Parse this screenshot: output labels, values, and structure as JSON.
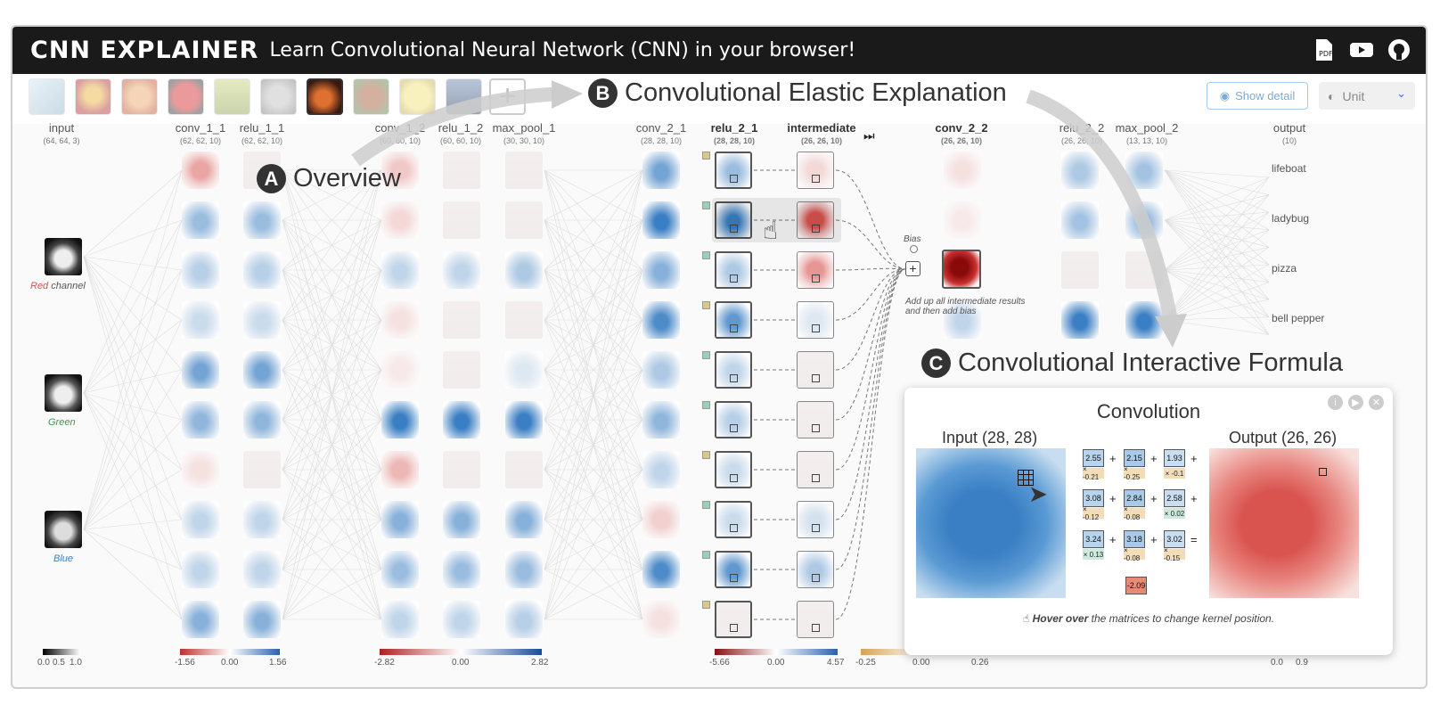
{
  "header": {
    "brand": "CNN EXPLAINER",
    "tagline": "Learn Convolutional Neural Network (CNN) in your browser!",
    "icons": [
      "pdf-icon",
      "youtube-icon",
      "github-icon"
    ]
  },
  "toolbar": {
    "show_detail_label": "Show detail",
    "unit_label": "Unit",
    "add_label": "+"
  },
  "columns": [
    {
      "name": "input",
      "dims": "(64, 64, 3)"
    },
    {
      "name": "conv_1_1",
      "dims": "(62, 62, 10)"
    },
    {
      "name": "relu_1_1",
      "dims": "(62, 62, 10)"
    },
    {
      "name": "conv_1_2",
      "dims": "(60, 60, 10)"
    },
    {
      "name": "relu_1_2",
      "dims": "(60, 60, 10)"
    },
    {
      "name": "max_pool_1",
      "dims": "(30, 30, 10)"
    },
    {
      "name": "conv_2_1",
      "dims": "(28, 28, 10)"
    },
    {
      "name": "relu_2_1",
      "dims": "(28, 28, 10)"
    },
    {
      "name": "intermediate",
      "dims": "(26, 26, 10)"
    },
    {
      "name": "conv_2_2",
      "dims": "(26, 26, 10)"
    },
    {
      "name": "relu_2_2",
      "dims": "(26, 26, 10)"
    },
    {
      "name": "max_pool_2",
      "dims": "(13, 13, 10)"
    },
    {
      "name": "output",
      "dims": "(10)"
    }
  ],
  "channels": [
    {
      "color": "Red",
      "suffix": "channel"
    },
    {
      "color": "Green",
      "suffix": ""
    },
    {
      "color": "Blue",
      "suffix": ""
    }
  ],
  "classes": [
    "lifeboat",
    "ladybug",
    "pizza",
    "bell pepper"
  ],
  "annotations": {
    "a_letter": "A",
    "a_title": "Overview",
    "b_letter": "B",
    "b_title": "Convolutional Elastic Explanation",
    "c_letter": "C",
    "c_title": "Convolutional Interactive Formula"
  },
  "bias_label": "Bias",
  "bias_note": "Add up all intermediate results and then add bias",
  "legends": {
    "input": [
      "0.0",
      "0.5",
      "1.0"
    ],
    "block1": [
      "-1.56",
      "0.00",
      "1.56"
    ],
    "block2": [
      "-2.82",
      "0.00",
      "2.82"
    ],
    "block3": [
      "-5.66",
      "0.00",
      "4.57"
    ],
    "kernel": [
      "-0.25",
      "0.00",
      "0.26"
    ],
    "output": [
      "0.0",
      "0.9"
    ]
  },
  "panel": {
    "title": "Convolution",
    "input_label": "Input (28, 28)",
    "output_label": "Output (26, 26)",
    "values": [
      [
        "2.55",
        "2.15",
        "1.93"
      ],
      [
        "3.08",
        "2.84",
        "2.58"
      ],
      [
        "3.24",
        "3.18",
        "3.02"
      ]
    ],
    "weights": [
      [
        "× -0.21",
        "× -0.25",
        "× -0.1"
      ],
      [
        "× -0.12",
        "× -0.08",
        "× 0.02"
      ],
      [
        "× 0.13",
        "× -0.08",
        "× -0.15"
      ]
    ],
    "result": "-2.09",
    "hint_bold": "Hover over",
    "hint_rest": " the matrices to change kernel position."
  },
  "colors": {
    "blue": "#3a7fc4",
    "red": "#d9534f",
    "dark": "#1a1a1a"
  }
}
